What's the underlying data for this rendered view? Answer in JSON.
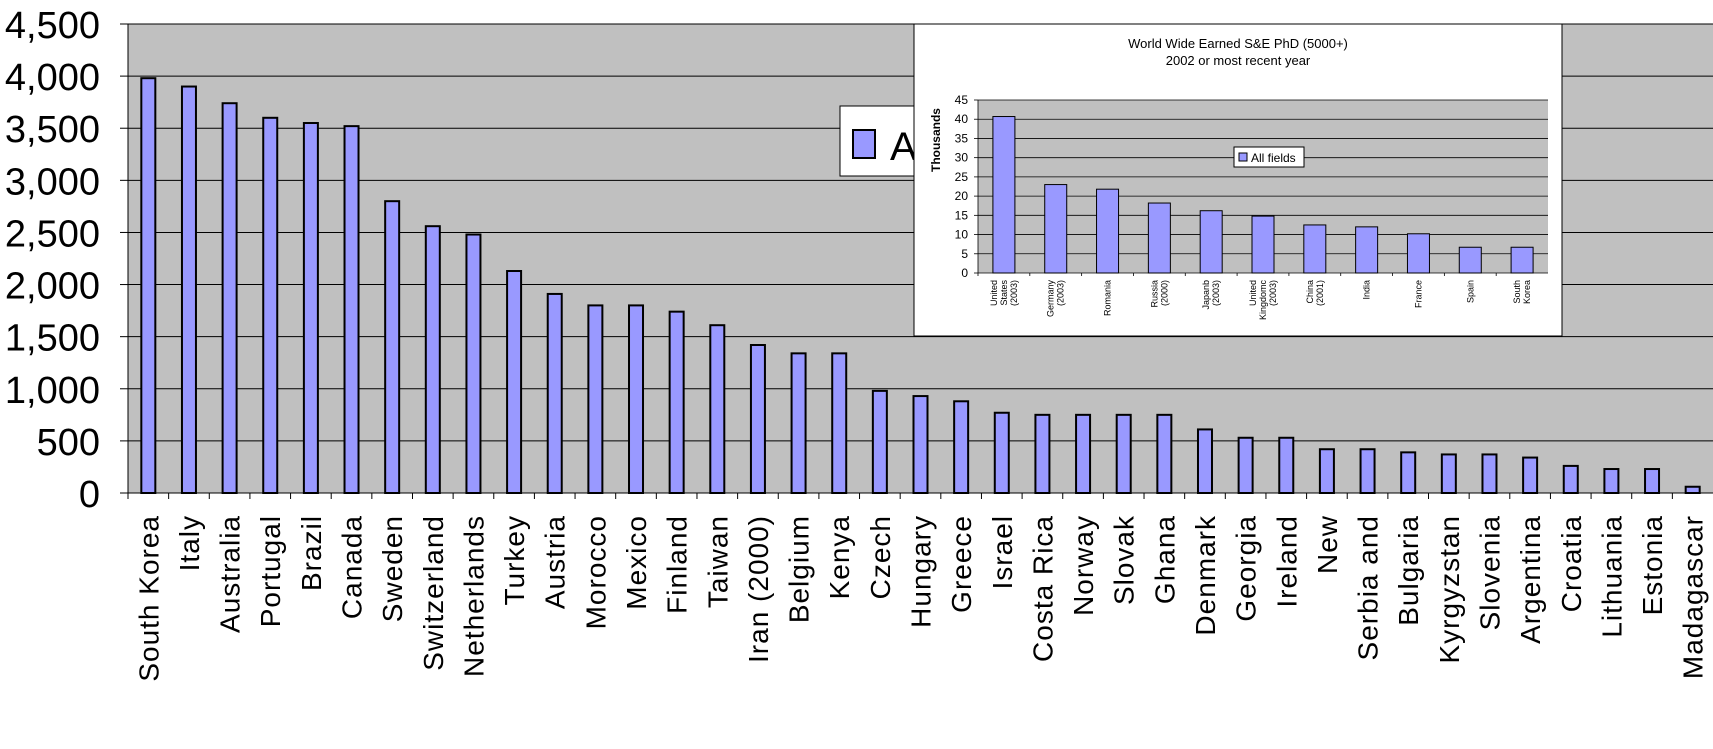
{
  "chart_data": [
    {
      "type": "bar",
      "title": "",
      "xlabel": "",
      "ylabel": "",
      "ylim": [
        0,
        4500
      ],
      "yticks": [
        "0",
        "500",
        "1,000",
        "1,500",
        "2,000",
        "2,500",
        "3,000",
        "3,500",
        "4,000",
        "4,500"
      ],
      "grid": true,
      "legend": {
        "entries": [
          "All fields"
        ],
        "placement": "top-right"
      },
      "colors": {
        "bar": "#9999ff",
        "plot_bg": "#c0c0c0",
        "bar_edge": "#000000"
      },
      "categories": [
        "South Korea",
        "Italy",
        "Australia",
        "Portugal",
        "Brazil",
        "Canada",
        "Sweden",
        "Switzerland",
        "Netherlands",
        "Turkey",
        "Austria",
        "Morocco",
        "Mexico",
        "Finland",
        "Taiwan",
        "Iran (2000)",
        "Belgium",
        "Kenya",
        "Czech",
        "Hungary",
        "Greece",
        "Israel",
        "Costa Rica",
        "Norway",
        "Slovak",
        "Ghana",
        "Denmark",
        "Georgia",
        "Ireland",
        "New",
        "Serbia and",
        "Bulgaria",
        "Kyrgyzstan",
        "Slovenia",
        "Argentina",
        "Croatia",
        "Lithuania",
        "Estonia",
        "Madagascar"
      ],
      "series": [
        {
          "name": "All fields",
          "values": [
            3980,
            3900,
            3740,
            3600,
            3550,
            3520,
            2800,
            2560,
            2480,
            2130,
            1910,
            1800,
            1800,
            1740,
            1610,
            1420,
            1340,
            1340,
            980,
            930,
            880,
            770,
            750,
            750,
            750,
            750,
            610,
            530,
            530,
            420,
            420,
            390,
            370,
            370,
            340,
            260,
            230,
            230,
            60
          ]
        }
      ]
    },
    {
      "type": "bar",
      "title": "World Wide Earned S&E PhD (5000+)",
      "subtitle": "2002 or most recent year",
      "xlabel": "",
      "ylabel": "Thousands",
      "ylim": [
        0,
        45
      ],
      "yticks": [
        "0",
        "5",
        "10",
        "15",
        "20",
        "25",
        "30",
        "35",
        "40",
        "45"
      ],
      "grid": true,
      "legend": {
        "entries": [
          "All fields"
        ],
        "placement": "center"
      },
      "colors": {
        "bar": "#9999ff",
        "plot_bg": "#c0c0c0",
        "bar_edge": "#000000"
      },
      "categories": [
        [
          "United",
          "States",
          "(2003)"
        ],
        [
          "Germany",
          "(2003)"
        ],
        [
          "Romania"
        ],
        [
          "Russia",
          "(2000)"
        ],
        [
          "Japanb",
          "(2003)"
        ],
        [
          "United",
          "Kingdomc",
          "(2003)"
        ],
        [
          "China",
          "(2001)"
        ],
        [
          "India"
        ],
        [
          "France"
        ],
        [
          "Spain"
        ],
        [
          "South",
          "Korea"
        ]
      ],
      "series": [
        {
          "name": "All fields",
          "values": [
            40.7,
            23.0,
            21.8,
            18.2,
            16.2,
            14.8,
            12.5,
            12.0,
            10.2,
            6.7,
            6.7
          ]
        }
      ]
    }
  ]
}
